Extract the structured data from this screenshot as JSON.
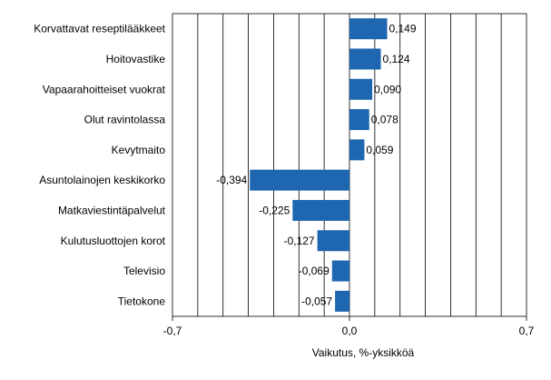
{
  "chart_data": {
    "type": "bar",
    "orientation": "horizontal",
    "categories": [
      "Korvattavat reseptilääkkeet",
      "Hoitovastike",
      "Vapaarahoitteiset vuokrat",
      "Olut ravintolassa",
      "Kevytmaito",
      "Asuntolainojen keskikorko",
      "Matkaviestintäpalvelut",
      "Kulutusluottojen korot",
      "Televisio",
      "Tietokone"
    ],
    "values": [
      0.149,
      0.124,
      0.09,
      0.078,
      0.059,
      -0.394,
      -0.225,
      -0.127,
      -0.069,
      -0.057
    ],
    "value_labels": [
      "0,149",
      "0,124",
      "0,090",
      "0,078",
      "0,059",
      "-0,394",
      "-0,225",
      "-0,127",
      "-0,069",
      "-0,057"
    ],
    "xlim": [
      -0.7,
      0.7
    ],
    "x_ticks": [
      -0.7,
      0.0,
      0.7
    ],
    "x_tick_labels": [
      "-0,7",
      "0,0",
      "0,7"
    ],
    "grid_step": 0.1,
    "xlabel": "Vaikutus, %-yksikköä",
    "title": "",
    "grid": true,
    "bar_color": "#1f66b0",
    "grid_color": "#000000"
  }
}
